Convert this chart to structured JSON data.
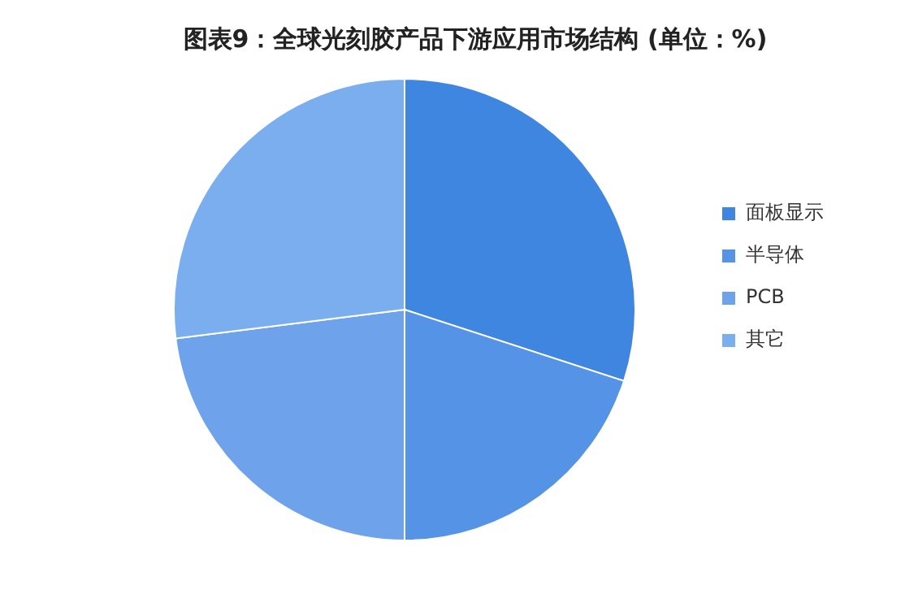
{
  "chart_data": {
    "type": "pie",
    "title": "图表9：全球光刻胶产品下游应用市场结构 (单位：%)",
    "categories": [
      "面板显示",
      "半导体",
      "PCB",
      "其它"
    ],
    "values": [
      30,
      20,
      23,
      27
    ],
    "colors": [
      "#3f86e0",
      "#5593e6",
      "#6ea2eb",
      "#7aaeee"
    ],
    "legend": "right"
  }
}
